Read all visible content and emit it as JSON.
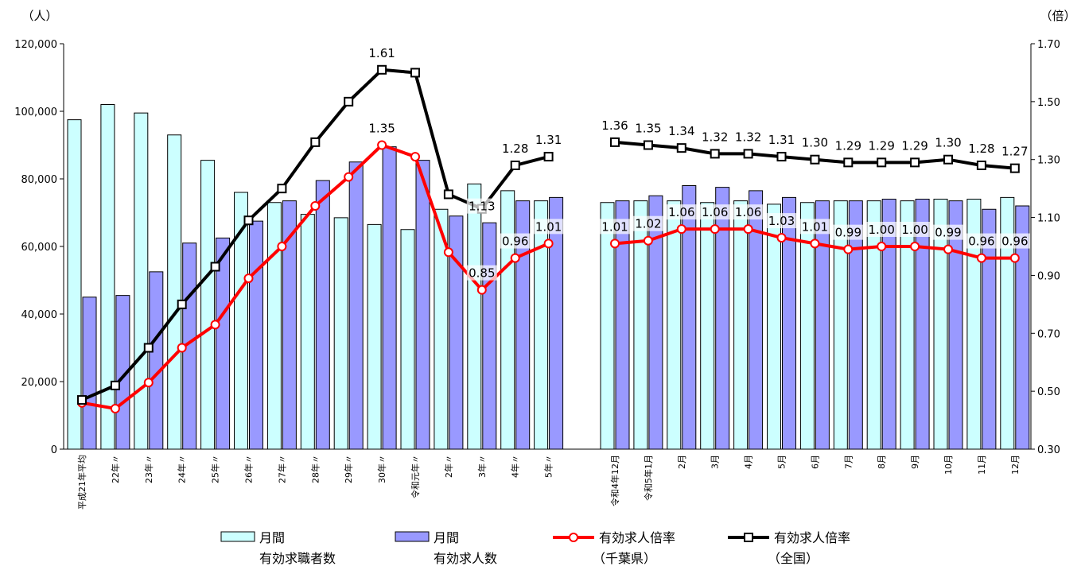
{
  "chart_data": {
    "type": "bar",
    "left_axis_unit": "（人）",
    "right_axis_unit": "（倍）",
    "left_ticks": [
      "0",
      "20,000",
      "40,000",
      "60,000",
      "80,000",
      "100,000",
      "120,000"
    ],
    "right_ticks": [
      "0.30",
      "0.50",
      "0.70",
      "0.90",
      "1.10",
      "1.30",
      "1.50",
      "1.70"
    ],
    "ylim_left": [
      0,
      120000
    ],
    "ylim_right": [
      0.3,
      1.7
    ],
    "categories": [
      "平成21年平均",
      "22年〃",
      "23年〃",
      "24年〃",
      "25年〃",
      "26年〃",
      "27年〃",
      "28年〃",
      "29年〃",
      "30年〃",
      "令和元年〃",
      "2年〃",
      "3年〃",
      "4年〃",
      "5年〃",
      "令和4年12月",
      "令和5年1月",
      "2月",
      "3月",
      "4月",
      "5月",
      "6月",
      "7月",
      "8月",
      "9月",
      "10月",
      "11月",
      "12月"
    ],
    "series": [
      {
        "name": "月間\n有効求職者数",
        "kind": "bar",
        "axis": "left",
        "color": "#ccffff",
        "values": [
          97500,
          102000,
          99500,
          93000,
          85500,
          76000,
          73000,
          69500,
          68500,
          66500,
          65000,
          71000,
          78500,
          76500,
          73500,
          73000,
          73500,
          73500,
          73000,
          73500,
          72500,
          73000,
          73500,
          73500,
          73500,
          74000,
          74000,
          74500
        ]
      },
      {
        "name": "月間\n有効求人数",
        "kind": "bar",
        "axis": "left",
        "color": "#9999ff",
        "values": [
          45000,
          45500,
          52500,
          61000,
          62500,
          67500,
          73500,
          79500,
          85000,
          89500,
          85500,
          69000,
          67000,
          73500,
          74500,
          73500,
          75000,
          78000,
          77500,
          76500,
          74500,
          73500,
          73500,
          74000,
          74000,
          73500,
          71000,
          72000
        ]
      },
      {
        "name": "有効求人倍率\n（千葉県）",
        "kind": "line",
        "axis": "right",
        "color": "#ff0000",
        "marker": "circle",
        "values": [
          0.46,
          0.44,
          0.53,
          0.65,
          0.73,
          0.89,
          1.0,
          1.14,
          1.24,
          1.35,
          1.31,
          0.98,
          0.85,
          0.96,
          1.01,
          1.01,
          1.02,
          1.06,
          1.06,
          1.06,
          1.03,
          1.01,
          0.99,
          1.0,
          1.0,
          0.99,
          0.96,
          0.96
        ],
        "labels": [
          "",
          "",
          "",
          "",
          "",
          "",
          "",
          "",
          "",
          "1.35",
          "",
          "",
          "0.85",
          "0.96",
          "1.01",
          "1.01",
          "1.02",
          "1.06",
          "1.06",
          "1.06",
          "1.03",
          "1.01",
          "0.99",
          "1.00",
          "1.00",
          "0.99",
          "0.96",
          "0.96"
        ]
      },
      {
        "name": "有効求人倍率\n（全国）",
        "kind": "line",
        "axis": "right",
        "color": "#000000",
        "marker": "square",
        "values": [
          0.47,
          0.52,
          0.65,
          0.8,
          0.93,
          1.09,
          1.2,
          1.36,
          1.5,
          1.61,
          1.6,
          1.18,
          1.13,
          1.28,
          1.31,
          1.36,
          1.35,
          1.34,
          1.32,
          1.32,
          1.31,
          1.3,
          1.29,
          1.29,
          1.29,
          1.3,
          1.28,
          1.27
        ],
        "labels": [
          "",
          "",
          "",
          "",
          "",
          "",
          "",
          "",
          "",
          "1.61",
          "",
          "",
          "1.13",
          "1.28",
          "1.31",
          "1.36",
          "1.35",
          "1.34",
          "1.32",
          "1.32",
          "1.31",
          "1.30",
          "1.29",
          "1.29",
          "1.29",
          "1.30",
          "1.28",
          "1.27"
        ]
      }
    ],
    "legend_position": "bottom",
    "grid": false
  }
}
